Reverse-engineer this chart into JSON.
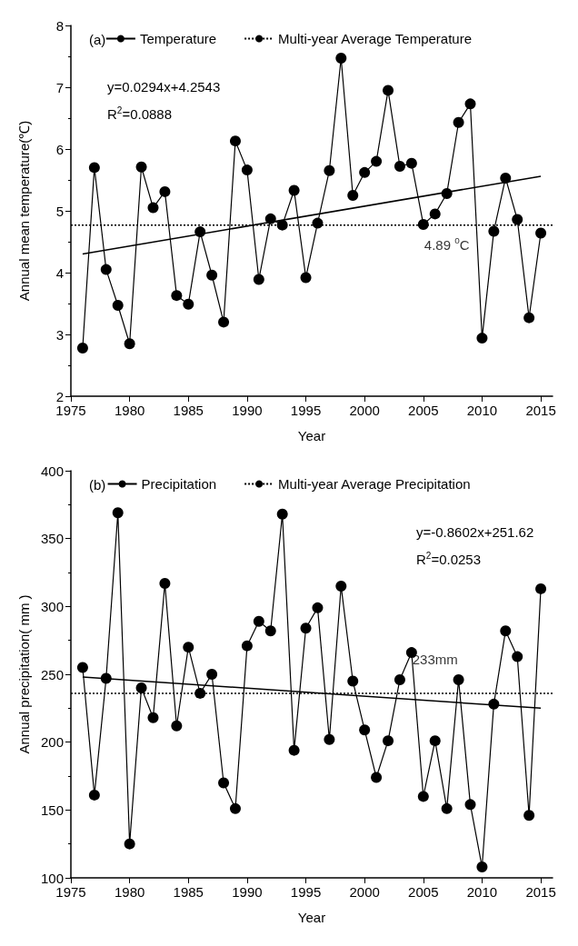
{
  "chart_data": [
    {
      "type": "line",
      "xlabel": "Year",
      "ylabel": "Annual mean temperature(℃)",
      "xlim": [
        1975,
        2016
      ],
      "xticks": [
        1975,
        1980,
        1985,
        1990,
        1995,
        2000,
        2005,
        2010,
        2015
      ],
      "ylim": [
        2,
        8
      ],
      "yticks": [
        2,
        3,
        4,
        5,
        6,
        7,
        8
      ],
      "grid": false,
      "legend": "top",
      "marker": "circle",
      "x": [
        1976,
        1977,
        1978,
        1979,
        1980,
        1981,
        1982,
        1983,
        1984,
        1985,
        1986,
        1987,
        1988,
        1989,
        1990,
        1991,
        1992,
        1993,
        1994,
        1995,
        1996,
        1997,
        1998,
        1999,
        2000,
        2001,
        2002,
        2003,
        2004,
        2005,
        2006,
        2007,
        2008,
        2009,
        2010,
        2011,
        2012,
        2013,
        2014,
        2015
      ],
      "series": [
        {
          "name": "Temperature",
          "color": "#000000",
          "values": [
            2.78,
            5.7,
            4.05,
            3.47,
            2.85,
            5.71,
            5.05,
            5.31,
            3.63,
            3.49,
            4.66,
            3.96,
            3.2,
            6.13,
            5.66,
            3.89,
            4.87,
            4.77,
            5.33,
            3.92,
            4.8,
            5.65,
            7.47,
            5.25,
            5.62,
            5.8,
            6.95,
            5.72,
            5.77,
            4.78,
            4.95,
            5.28,
            6.43,
            6.73,
            2.94,
            4.67,
            5.53,
            4.86,
            3.27,
            4.64
          ]
        },
        {
          "name": "Multi-year Average Temperature",
          "color": "#000000",
          "line_style": "dotted",
          "marker": "none",
          "x": [
            1975,
            2016
          ],
          "values": [
            4.77,
            4.77
          ]
        },
        {
          "color": "#000000",
          "marker": "none",
          "x": [
            1976,
            2015
          ],
          "values": [
            4.3,
            5.56
          ]
        }
      ],
      "annotations": [
        "(a)",
        "y=0.0294x+4.2543",
        "R$^{2}$=0.0888",
        {
          "text": "4.89 $^{o}$C",
          "x": 2007,
          "y": 4.77
        }
      ]
    },
    {
      "type": "line",
      "xlabel": "Year",
      "ylabel": "Annual precipitation( mm )",
      "xlim": [
        1975,
        2016
      ],
      "xticks": [
        1975,
        1980,
        1985,
        1990,
        1995,
        2000,
        2005,
        2010,
        2015
      ],
      "ylim": [
        100,
        400
      ],
      "yticks": [
        100,
        150,
        200,
        250,
        300,
        350,
        400
      ],
      "grid": false,
      "legend": "top",
      "marker": "circle",
      "x": [
        1976,
        1977,
        1978,
        1979,
        1980,
        1981,
        1982,
        1983,
        1984,
        1985,
        1986,
        1987,
        1988,
        1989,
        1990,
        1991,
        1992,
        1993,
        1994,
        1995,
        1996,
        1997,
        1998,
        1999,
        2000,
        2001,
        2002,
        2003,
        2004,
        2005,
        2006,
        2007,
        2008,
        2009,
        2010,
        2011,
        2012,
        2013,
        2014,
        2015
      ],
      "series": [
        {
          "name": "Precipitation",
          "color": "#000000",
          "values": [
            255,
            161,
            247,
            369,
            125,
            240,
            218,
            317,
            212,
            270,
            236,
            250,
            170,
            151,
            271,
            289,
            282,
            368,
            194,
            284,
            299,
            202,
            315,
            245,
            209,
            174,
            201,
            246,
            266,
            160,
            201,
            151,
            246,
            154,
            108,
            228,
            282,
            263,
            146,
            313
          ]
        },
        {
          "name": "Multi-year Average Precipitation",
          "color": "#000000",
          "line_style": "dotted",
          "marker": "none",
          "x": [
            1975,
            2016
          ],
          "values": [
            236,
            236
          ]
        },
        {
          "color": "#000000",
          "marker": "none",
          "x": [
            1976,
            2015
          ],
          "values": [
            248,
            225
          ]
        }
      ],
      "annotations": [
        "(b)",
        "y=-0.8602x+251.62",
        "R$^{2}$=0.0253",
        {
          "text": "233mm",
          "x": 2006,
          "y": 236
        }
      ]
    }
  ]
}
